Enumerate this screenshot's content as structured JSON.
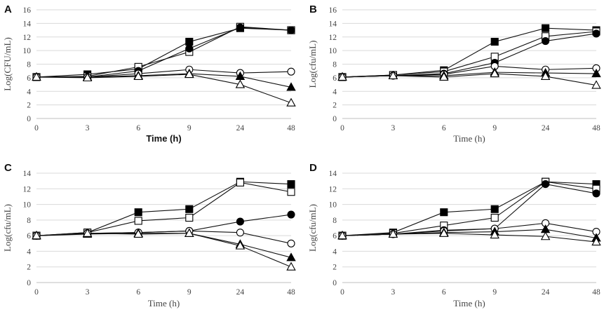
{
  "chart_data": [
    {
      "type": "line",
      "label": "A",
      "xlabel": "Time (h)",
      "xlabel_bold": true,
      "ylabel": "Log(CFU/mL)",
      "categories": [
        "0",
        "3",
        "6",
        "9",
        "24",
        "48"
      ],
      "ylim": [
        0,
        16
      ],
      "ystep": 2,
      "grid": true,
      "series": [
        {
          "marker": "square-filled",
          "values": [
            6.1,
            6.5,
            7.3,
            11.3,
            13.3,
            13.0
          ]
        },
        {
          "marker": "square-open",
          "values": [
            6.1,
            6.2,
            7.6,
            9.8,
            13.5,
            13.0
          ]
        },
        {
          "marker": "circle-filled",
          "values": [
            6.1,
            6.1,
            7.0,
            10.3,
            13.4,
            13.0
          ]
        },
        {
          "marker": "circle-open",
          "values": [
            6.1,
            6.1,
            6.6,
            7.2,
            6.7,
            6.9
          ]
        },
        {
          "marker": "triangle-filled",
          "values": [
            6.1,
            6.1,
            6.3,
            6.6,
            6.2,
            4.6
          ]
        },
        {
          "marker": "triangle-open",
          "values": [
            6.1,
            6.0,
            6.2,
            6.5,
            5.0,
            2.3
          ]
        }
      ]
    },
    {
      "type": "line",
      "label": "B",
      "xlabel": "Time (h)",
      "xlabel_bold": false,
      "ylabel": "Log(cfu/mL)",
      "categories": [
        "0",
        "3",
        "6",
        "9",
        "24",
        "48"
      ],
      "ylim": [
        0,
        16
      ],
      "ystep": 2,
      "grid": true,
      "series": [
        {
          "marker": "square-filled",
          "values": [
            6.1,
            6.4,
            7.1,
            11.3,
            13.3,
            13.0
          ]
        },
        {
          "marker": "square-open",
          "values": [
            6.1,
            6.4,
            6.9,
            9.1,
            12.1,
            12.8
          ]
        },
        {
          "marker": "circle-filled",
          "values": [
            6.1,
            6.3,
            6.6,
            8.2,
            11.4,
            12.5
          ]
        },
        {
          "marker": "circle-open",
          "values": [
            6.1,
            6.3,
            6.5,
            7.7,
            7.2,
            7.4
          ]
        },
        {
          "marker": "triangle-filled",
          "values": [
            6.1,
            6.3,
            6.3,
            6.8,
            6.7,
            6.6
          ]
        },
        {
          "marker": "triangle-open",
          "values": [
            6.1,
            6.3,
            6.1,
            6.6,
            6.2,
            4.9
          ]
        }
      ]
    },
    {
      "type": "line",
      "label": "C",
      "xlabel": "Time (h)",
      "xlabel_bold": false,
      "ylabel": "Log(cfu/mL)",
      "categories": [
        "0",
        "3",
        "6",
        "9",
        "24",
        "48"
      ],
      "ylim": [
        0,
        14
      ],
      "ystep": 2,
      "grid": true,
      "series": [
        {
          "marker": "square-filled",
          "values": [
            6.0,
            6.4,
            9.0,
            9.4,
            12.9,
            12.6
          ]
        },
        {
          "marker": "square-open",
          "values": [
            6.0,
            6.4,
            7.9,
            8.3,
            12.8,
            11.6
          ]
        },
        {
          "marker": "circle-filled",
          "values": [
            6.0,
            6.3,
            6.4,
            6.6,
            7.8,
            8.7
          ]
        },
        {
          "marker": "circle-open",
          "values": [
            6.0,
            6.3,
            6.4,
            6.6,
            6.4,
            5.0
          ]
        },
        {
          "marker": "triangle-filled",
          "values": [
            6.0,
            6.2,
            6.3,
            6.3,
            4.9,
            3.2
          ]
        },
        {
          "marker": "triangle-open",
          "values": [
            6.0,
            6.3,
            6.2,
            6.3,
            4.7,
            2.0
          ]
        }
      ]
    },
    {
      "type": "line",
      "label": "D",
      "xlabel": "Time (h)",
      "xlabel_bold": false,
      "ylabel": "Log(cfu/mL)",
      "categories": [
        "0",
        "3",
        "6",
        "9",
        "24",
        "48"
      ],
      "ylim": [
        0,
        14
      ],
      "ystep": 2,
      "grid": true,
      "series": [
        {
          "marker": "square-filled",
          "values": [
            6.0,
            6.4,
            9.0,
            9.4,
            12.9,
            12.6
          ]
        },
        {
          "marker": "square-open",
          "values": [
            6.0,
            6.3,
            7.3,
            8.3,
            12.9,
            12.0
          ]
        },
        {
          "marker": "circle-filled",
          "values": [
            6.0,
            6.2,
            6.7,
            6.9,
            12.6,
            11.4
          ]
        },
        {
          "marker": "circle-open",
          "values": [
            6.0,
            6.2,
            6.6,
            6.9,
            7.6,
            6.5
          ]
        },
        {
          "marker": "triangle-filled",
          "values": [
            6.0,
            6.2,
            6.4,
            6.5,
            6.8,
            5.7
          ]
        },
        {
          "marker": "triangle-open",
          "values": [
            6.0,
            6.2,
            6.3,
            6.1,
            5.9,
            5.2
          ]
        }
      ]
    }
  ]
}
